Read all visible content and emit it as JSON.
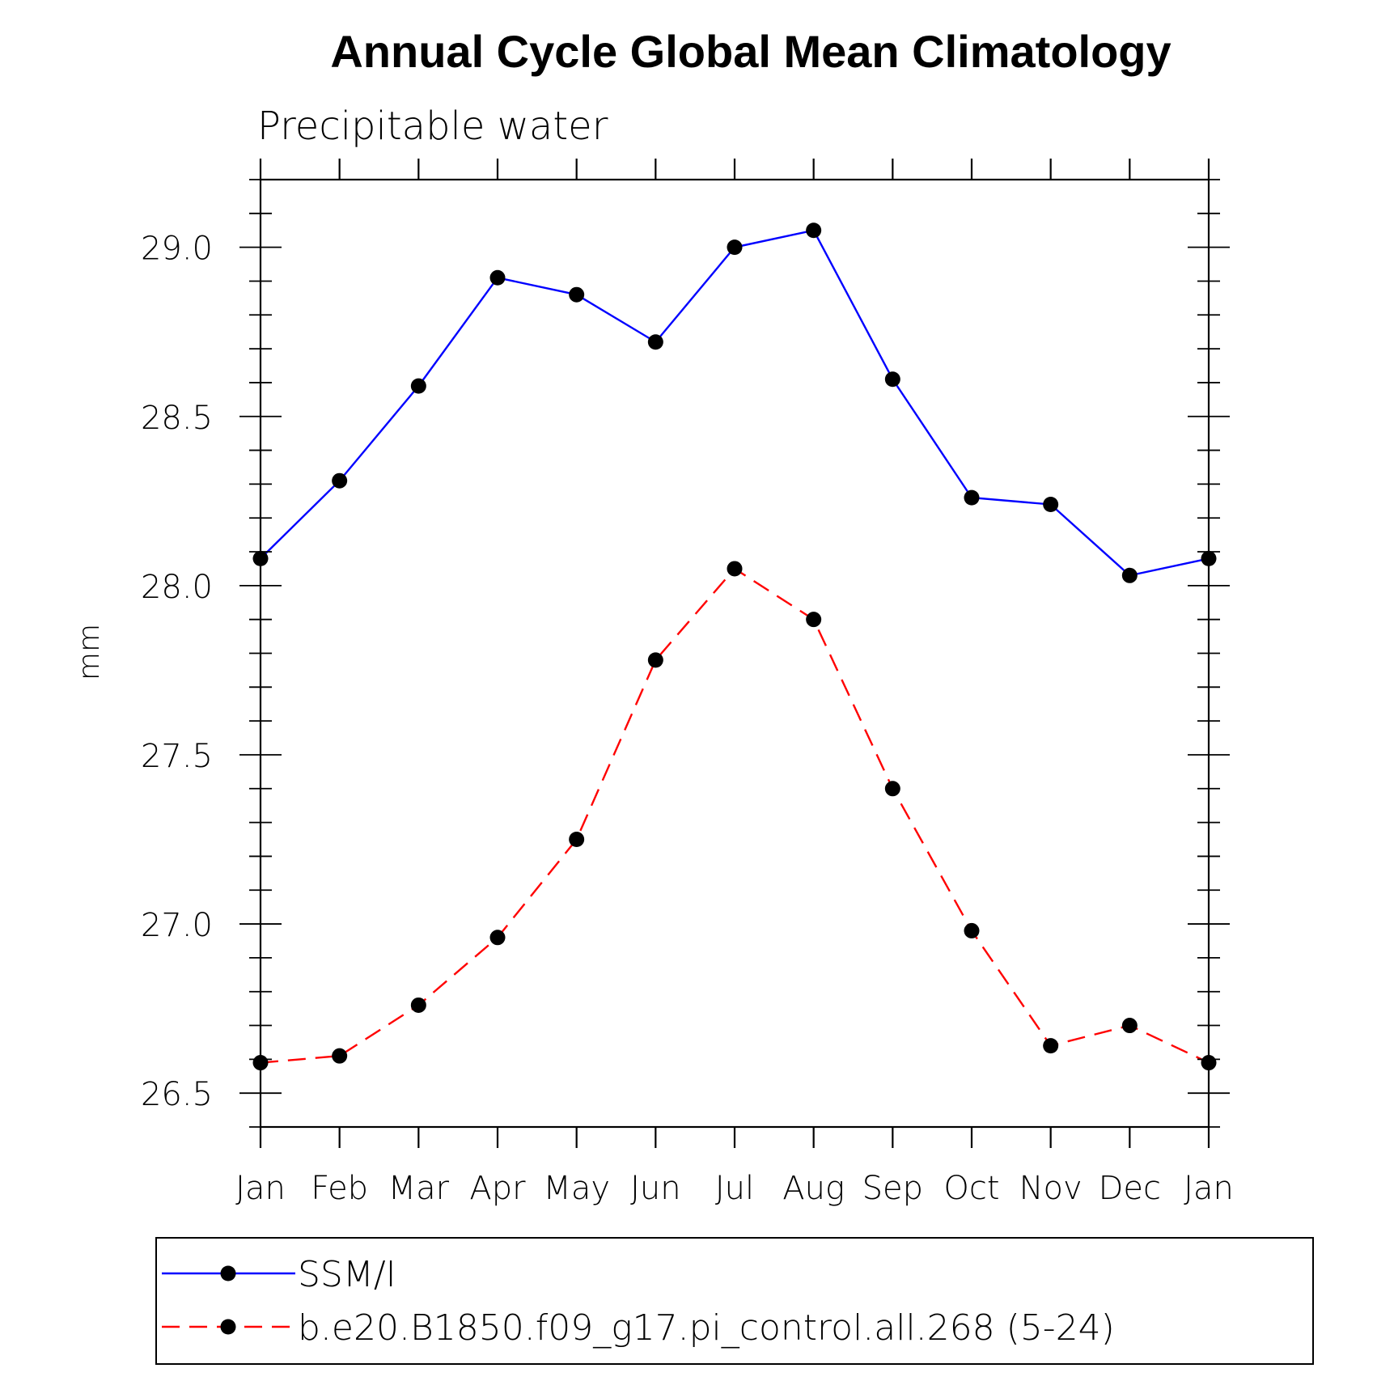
{
  "chart_data": {
    "type": "line",
    "title": "Annual Cycle Global Mean Climatology",
    "subtitle": "Precipitable water",
    "xlabel": "",
    "ylabel": "mm",
    "categories": [
      "Jan",
      "Feb",
      "Mar",
      "Apr",
      "May",
      "Jun",
      "Jul",
      "Aug",
      "Sep",
      "Oct",
      "Nov",
      "Dec",
      "Jan"
    ],
    "ylim": [
      26.4,
      29.2
    ],
    "yticks": [
      "26.5",
      "27.0",
      "27.5",
      "28.0",
      "28.5",
      "29.0"
    ],
    "legend_position": "bottom",
    "grid": false,
    "series": [
      {
        "name": "SSM/I",
        "color": "#0000ff",
        "line_style": "solid",
        "marker": "filled-circle",
        "values": [
          28.08,
          28.31,
          28.59,
          28.91,
          28.86,
          28.72,
          29.0,
          29.05,
          28.61,
          28.26,
          28.24,
          28.03,
          28.08
        ]
      },
      {
        "name": "b.e20.B1850.f09_g17.pi_control.all.268 (5-24)",
        "color": "#ff0000",
        "line_style": "dashed",
        "marker": "filled-circle",
        "values": [
          26.59,
          26.61,
          26.76,
          26.96,
          27.25,
          27.78,
          28.05,
          27.9,
          27.4,
          26.98,
          26.64,
          26.7,
          26.59
        ]
      }
    ]
  }
}
